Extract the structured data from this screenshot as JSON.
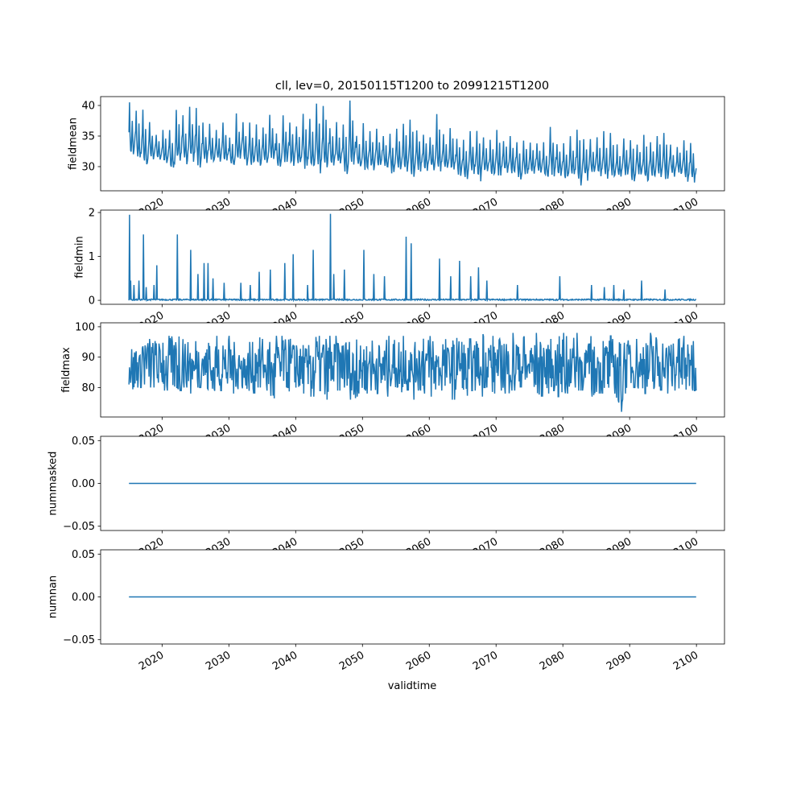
{
  "chart_data": {
    "type": "line",
    "title": "cll, lev=0, 20150115T1200 to 20991215T1200",
    "xlabel": "validtime",
    "x_range_years": [
      2015.04,
      2099.96
    ],
    "xlim": [
      2010.8,
      2104.2
    ],
    "xticks": [
      2020,
      2030,
      2040,
      2050,
      2060,
      2070,
      2080,
      2090,
      2100
    ],
    "xtick_labels": [
      "2020",
      "2030",
      "2040",
      "2050",
      "2060",
      "2070",
      "2080",
      "2090",
      "2100"
    ],
    "sampling": "monthly",
    "color": "#1f77b4",
    "panels": [
      {
        "ylabel": "fieldmean",
        "ylim": [
          26.05,
          41.45
        ],
        "yticks": [
          30,
          35,
          40
        ],
        "ytick_labels": [
          "30",
          "35",
          "40"
        ],
        "kind": "seasonal",
        "start_year": 2015,
        "annual_peaks": [
          40.5,
          39.5,
          39.3,
          37.5,
          35.5,
          36,
          36.1,
          39.4,
          38.4,
          39.8,
          39.6,
          37.2,
          37,
          36,
          37.2,
          35,
          38.7,
          37.8,
          37.2,
          37,
          36.8,
          39,
          35.5,
          38.4,
          37.5,
          36.8,
          39.2,
          37.8,
          40.3,
          40.4,
          36.7,
          37.7,
          37.5,
          40.8,
          35.3,
          37.3,
          35.8,
          36.2,
          35,
          35.4,
          36.2,
          37,
          38.2,
          36.4,
          35.5,
          34.8,
          38.6,
          35.3,
          36.3,
          34.8,
          34.6,
          35.8,
          36.2,
          35.2,
          34.4,
          36,
          34.5,
          35,
          34,
          34.5,
          34,
          33.8,
          34,
          36.5,
          33.8,
          34.2,
          35.2,
          36.6,
          35,
          34.5,
          34.8,
          35.8,
          35.5,
          34,
          34.6,
          34.5,
          33.6,
          35.2,
          34,
          35.4,
          35.5,
          34,
          33.5,
          34.3,
          34
        ],
        "annual_troughs": [
          31.2,
          30.5,
          29.4,
          30.8,
          31,
          30.2,
          29.2,
          30.6,
          30.4,
          30.8,
          29.7,
          30.6,
          30.2,
          30.8,
          30.4,
          30,
          30.5,
          30.2,
          29.9,
          29.8,
          30.4,
          30.2,
          29.5,
          30.1,
          29.7,
          30,
          29.4,
          29.5,
          28.9,
          29,
          29.6,
          29.6,
          28.8,
          29.3,
          29.8,
          29.1,
          29.4,
          29.6,
          29.4,
          28.7,
          29.2,
          29,
          28,
          29.2,
          29,
          29.4,
          28.6,
          29.2,
          28.9,
          28.5,
          27.7,
          28.8,
          27.6,
          28.6,
          28.4,
          28.2,
          29,
          28.7,
          27.9,
          28.4,
          28.7,
          28.8,
          27.9,
          28.4,
          28.5,
          27.7,
          28.3,
          26.8,
          27.7,
          28.6,
          28.2,
          28,
          27.6,
          27.9,
          28.4,
          27.6,
          28.6,
          27.2,
          28,
          28.3,
          27.7,
          28.1,
          28.4,
          27.5,
          27.4
        ]
      },
      {
        "ylabel": "fieldmin",
        "ylim": [
          -0.09,
          2.055
        ],
        "yticks": [
          0,
          1,
          2
        ],
        "ytick_labels": [
          "0",
          "1",
          "2"
        ],
        "kind": "spikes",
        "baseline": 0.02,
        "spikes": [
          [
            2015.1,
            1.95
          ],
          [
            2015.3,
            0.45
          ],
          [
            2015.8,
            0.35
          ],
          [
            2016.5,
            0.45
          ],
          [
            2017.2,
            1.5
          ],
          [
            2017.6,
            0.3
          ],
          [
            2018.8,
            0.35
          ],
          [
            2019.2,
            0.8
          ],
          [
            2022.3,
            1.5
          ],
          [
            2024.3,
            1.15
          ],
          [
            2025.4,
            0.6
          ],
          [
            2026.3,
            0.85
          ],
          [
            2026.9,
            0.85
          ],
          [
            2027.6,
            0.5
          ],
          [
            2029.3,
            0.4
          ],
          [
            2031.8,
            0.4
          ],
          [
            2033.2,
            0.35
          ],
          [
            2034.5,
            0.65
          ],
          [
            2036.2,
            0.7
          ],
          [
            2038.4,
            0.85
          ],
          [
            2039.6,
            1.05
          ],
          [
            2041.8,
            0.35
          ],
          [
            2042.6,
            1.15
          ],
          [
            2045.2,
            1.97
          ],
          [
            2045.7,
            0.6
          ],
          [
            2047.3,
            0.7
          ],
          [
            2050.2,
            1.15
          ],
          [
            2051.7,
            0.6
          ],
          [
            2053.3,
            0.55
          ],
          [
            2056.5,
            1.45
          ],
          [
            2057.3,
            1.3
          ],
          [
            2061.5,
            0.95
          ],
          [
            2063.2,
            0.55
          ],
          [
            2064.5,
            0.9
          ],
          [
            2066.2,
            0.55
          ],
          [
            2067.4,
            0.75
          ],
          [
            2068.6,
            0.45
          ],
          [
            2073.2,
            0.35
          ],
          [
            2079.5,
            0.55
          ],
          [
            2084.3,
            0.35
          ],
          [
            2086.2,
            0.3
          ],
          [
            2087.6,
            0.35
          ],
          [
            2089.1,
            0.25
          ],
          [
            2091.8,
            0.45
          ],
          [
            2095.3,
            0.25
          ]
        ]
      },
      {
        "ylabel": "fieldmax",
        "ylim": [
          70.3,
          101.3
        ],
        "yticks": [
          80,
          90,
          100
        ],
        "ytick_labels": [
          "80",
          "90",
          "100"
        ],
        "kind": "seasonal",
        "noisy": true,
        "start_year": 2015,
        "annual_peaks": [
          95,
          93,
          97,
          96,
          95,
          96,
          97,
          97,
          96,
          97,
          96,
          97,
          95,
          97,
          96,
          97,
          96,
          94,
          95,
          97,
          96,
          95,
          97,
          96,
          97,
          96,
          94,
          98,
          97,
          96,
          97,
          97,
          96,
          95,
          97,
          96,
          97,
          95,
          97,
          98,
          97,
          97,
          96,
          97,
          98,
          97,
          96,
          97,
          98,
          98,
          97,
          96,
          97,
          98,
          97,
          96,
          97,
          98,
          96,
          97,
          97,
          98,
          96,
          96,
          97,
          98,
          97,
          98,
          96,
          97,
          96,
          97,
          97,
          96,
          98,
          97,
          96,
          98,
          98,
          97,
          96,
          97,
          98,
          97,
          98
        ],
        "annual_troughs": [
          79,
          80,
          81,
          80,
          81,
          79,
          80,
          79,
          80,
          78,
          80,
          79,
          78,
          79,
          80,
          78,
          79,
          79,
          78,
          80,
          79,
          76,
          79,
          80,
          78,
          79,
          78,
          77,
          79,
          76,
          78,
          79,
          80,
          76,
          77,
          78,
          79,
          78,
          77,
          80,
          78,
          79,
          76,
          79,
          78,
          77,
          79,
          78,
          76,
          79,
          74,
          79,
          77,
          80,
          78,
          79,
          78,
          79,
          80,
          78,
          79,
          77,
          78,
          79,
          77,
          78,
          80,
          79,
          78,
          77,
          78,
          79,
          78,
          72,
          78,
          80,
          79,
          78,
          77,
          79,
          78,
          79,
          78,
          79,
          79
        ]
      },
      {
        "ylabel": "nummasked",
        "ylim": [
          -0.055,
          0.055
        ],
        "yticks": [
          -0.05,
          0.0,
          0.05
        ],
        "ytick_labels": [
          "−0.05",
          "0.00",
          "0.05"
        ],
        "kind": "constant",
        "value": 0
      },
      {
        "ylabel": "numnan",
        "ylim": [
          -0.055,
          0.055
        ],
        "yticks": [
          -0.05,
          0.0,
          0.05
        ],
        "ytick_labels": [
          "−0.05",
          "0.00",
          "0.05"
        ],
        "kind": "constant",
        "value": 0
      }
    ]
  }
}
